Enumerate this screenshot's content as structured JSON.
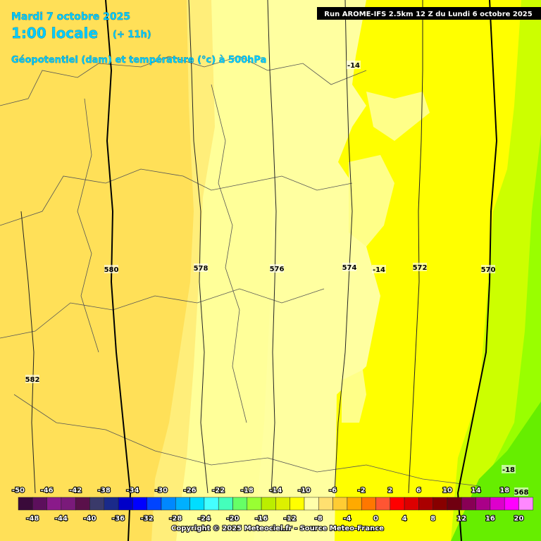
{
  "header": {
    "date": "Mardi 7 octobre 2025",
    "time": "1:00 locale",
    "lead": "(+ 11h)",
    "parameter": "Géopotentiel (dam) et température (°c) à 500hPa",
    "run": "Run AROME-IFS 2.5km 12 Z du Lundi 6 octobre 2025"
  },
  "map_labels": [
    "580",
    "578",
    "576",
    "574",
    "-14",
    "572",
    "570",
    "582",
    "-14",
    "-18",
    "568"
  ],
  "colorbar": {
    "labels": [
      "-50",
      "-48",
      "-46",
      "-44",
      "-42",
      "-40",
      "-38",
      "-36",
      "-34",
      "-32",
      "-30",
      "-28",
      "-26",
      "-24",
      "-22",
      "-20",
      "-18",
      "-16",
      "-14",
      "-12",
      "-10",
      "-8",
      "-6",
      "-4",
      "-2",
      "0",
      "2",
      "4",
      "6",
      "8",
      "10",
      "12",
      "14",
      "16",
      "18",
      "20"
    ],
    "colors": [
      "#3a0a3a",
      "#5c0f5c",
      "#8a1a8a",
      "#7a1a7a",
      "#5a104a",
      "#3a3a6a",
      "#1a2a8a",
      "#0000c8",
      "#0000ff",
      "#0044ff",
      "#0088ff",
      "#00b0ff",
      "#00ddff",
      "#44ffff",
      "#44ffbb",
      "#66ff66",
      "#99ff33",
      "#bbee00",
      "#ddf000",
      "#ffff00",
      "#ffffaa",
      "#ffe070",
      "#ffcc33",
      "#ffaa00",
      "#ff7700",
      "#ff5533",
      "#ff0000",
      "#dd0000",
      "#aa0000",
      "#880000",
      "#700010",
      "#880055",
      "#aa0088",
      "#dd00cc",
      "#ff00ff",
      "#ff88ff"
    ]
  },
  "footer": {
    "copyright": "Copyright © 2025 Meteociel.fr - Source Meteo-France"
  }
}
